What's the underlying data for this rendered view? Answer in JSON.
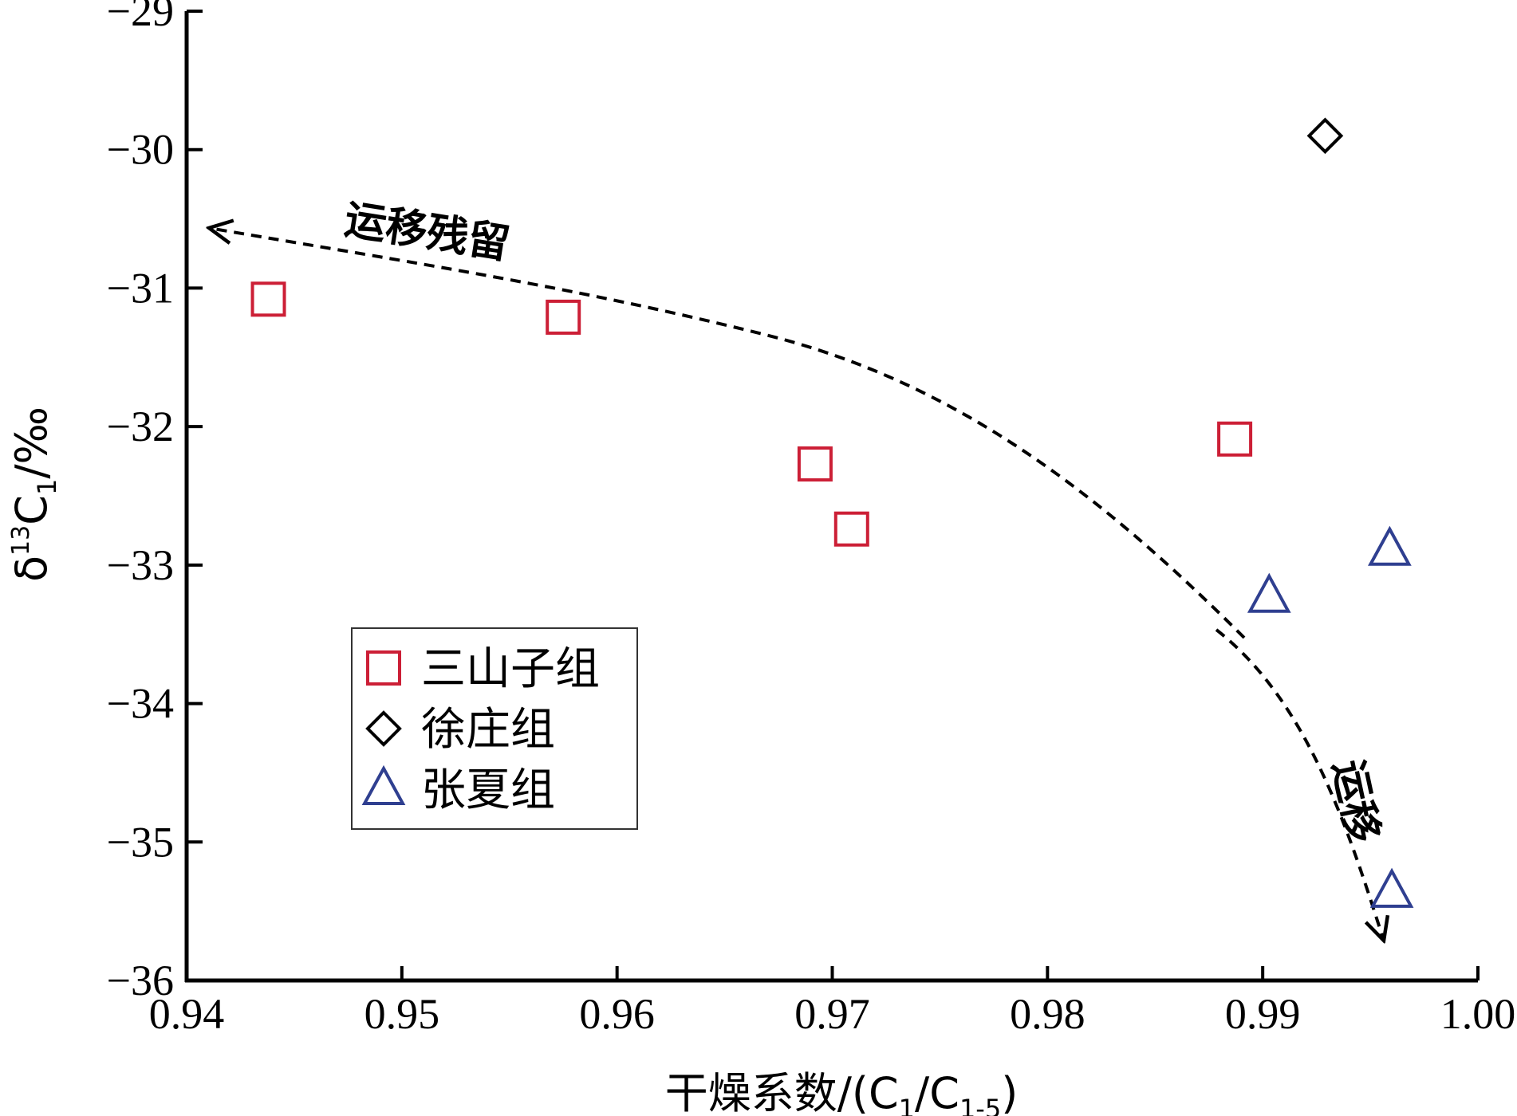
{
  "chart_data": {
    "type": "scatter",
    "xlabel": {
      "main": "干燥系数/(C",
      "sub1": "1",
      "mid": "/C",
      "sub2": "1-5",
      "end": ")"
    },
    "ylabel": {
      "delta": "δ",
      "sup": "13",
      "c": "C",
      "sub": "1",
      "unit": "/‰"
    },
    "xlim": [
      0.94,
      1.0
    ],
    "ylim": [
      -36,
      -29
    ],
    "xticks": [
      {
        "value": 0.94,
        "label": "0.94"
      },
      {
        "value": 0.95,
        "label": "0.95"
      },
      {
        "value": 0.96,
        "label": "0.96"
      },
      {
        "value": 0.97,
        "label": "0.97"
      },
      {
        "value": 0.98,
        "label": "0.98"
      },
      {
        "value": 0.99,
        "label": "0.99"
      },
      {
        "value": 1.0,
        "label": "1.00"
      }
    ],
    "yticks": [
      {
        "value": -29,
        "label": "−29"
      },
      {
        "value": -30,
        "label": "−30"
      },
      {
        "value": -31,
        "label": "−31"
      },
      {
        "value": -32,
        "label": "−32"
      },
      {
        "value": -33,
        "label": "−33"
      },
      {
        "value": -34,
        "label": "−34"
      },
      {
        "value": -35,
        "label": "−35"
      },
      {
        "value": -36,
        "label": "−36"
      }
    ],
    "grid": false,
    "legend_position": "lower-left",
    "series": [
      {
        "name": "三山子组",
        "marker": "square",
        "color": "#cc1f36",
        "points": [
          {
            "x": 0.9438,
            "y": -31.08
          },
          {
            "x": 0.9575,
            "y": -31.21
          },
          {
            "x": 0.9692,
            "y": -32.27
          },
          {
            "x": 0.9709,
            "y": -32.74
          },
          {
            "x": 0.9887,
            "y": -32.09
          }
        ]
      },
      {
        "name": "徐庄组",
        "marker": "diamond",
        "color": "#000000",
        "points": [
          {
            "x": 0.9929,
            "y": -29.9
          }
        ]
      },
      {
        "name": "张夏组",
        "marker": "triangle",
        "color": "#2f3f90",
        "points": [
          {
            "x": 0.9903,
            "y": -33.23
          },
          {
            "x": 0.9959,
            "y": -32.89
          },
          {
            "x": 0.996,
            "y": -35.36
          }
        ]
      }
    ],
    "annotations": [
      {
        "id": "migration-residue",
        "text": "运移残留"
      },
      {
        "id": "migration",
        "text": "运移"
      }
    ]
  }
}
